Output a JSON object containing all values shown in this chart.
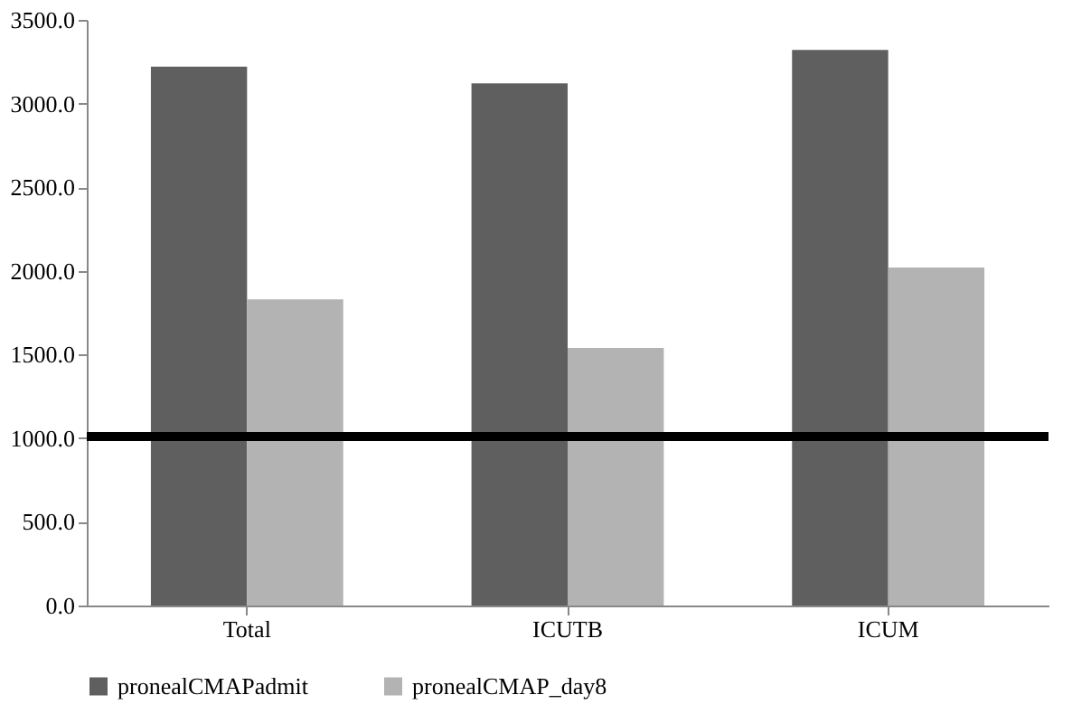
{
  "chart_data": {
    "type": "bar",
    "categories": [
      "Total",
      "ICUTB",
      "ICUM"
    ],
    "series": [
      {
        "name": "pronealCMAPadmit",
        "color": "#5f5f5f",
        "values": [
          3220,
          3120,
          3320
        ]
      },
      {
        "name": "pronealCMAP_day8",
        "color": "#b3b3b3",
        "values": [
          1830,
          1540,
          2020
        ]
      }
    ],
    "ylim": [
      0,
      3500
    ],
    "yticks": [
      {
        "value": 0,
        "label": "0.0"
      },
      {
        "value": 500,
        "label": "500.0"
      },
      {
        "value": 1000,
        "label": "1000.0"
      },
      {
        "value": 1500,
        "label": "1500.0"
      },
      {
        "value": 2000,
        "label": "2000.0"
      },
      {
        "value": 2500,
        "label": "2500.0"
      },
      {
        "value": 3000,
        "label": "3000.0"
      },
      {
        "value": 3500,
        "label": "3500.0"
      }
    ],
    "ref_lines": [
      {
        "axis": "y",
        "value": 1010,
        "color": "#000000"
      }
    ],
    "grid": false,
    "legend": "bottom"
  }
}
